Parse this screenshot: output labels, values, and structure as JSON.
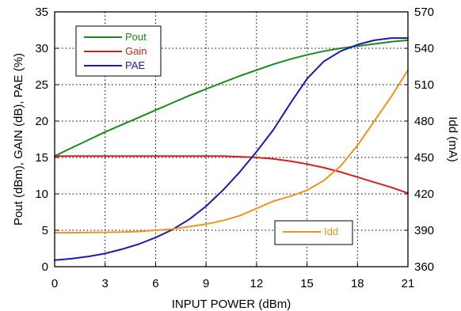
{
  "chart_data": {
    "type": "line",
    "xlabel": "INPUT POWER (dBm)",
    "ylabel_left": "Pout (dBm), GAIN (dB), PAE (%)",
    "ylabel_right": "Idd (mA)",
    "xlim": [
      0,
      21
    ],
    "ylim_left": [
      0,
      35
    ],
    "ylim_right": [
      360,
      570
    ],
    "x_ticks": [
      0,
      3,
      6,
      9,
      12,
      15,
      18,
      21
    ],
    "y_left_ticks": [
      0,
      5,
      10,
      15,
      20,
      25,
      30,
      35
    ],
    "y_right_ticks": [
      360,
      390,
      420,
      450,
      480,
      510,
      540,
      570
    ],
    "grid": "dotted",
    "x": [
      0,
      1,
      2,
      3,
      4,
      5,
      6,
      7,
      8,
      9,
      10,
      11,
      12,
      13,
      14,
      15,
      16,
      17,
      18,
      19,
      20,
      21
    ],
    "series": [
      {
        "name": "Pout",
        "axis": "left",
        "color": "#1a8a1a",
        "values": [
          15.2,
          16.3,
          17.4,
          18.5,
          19.5,
          20.5,
          21.5,
          22.5,
          23.5,
          24.4,
          25.3,
          26.2,
          27.0,
          27.8,
          28.5,
          29.1,
          29.6,
          30.0,
          30.3,
          30.6,
          30.9,
          31.1
        ]
      },
      {
        "name": "Gain",
        "axis": "left",
        "color": "#d42020",
        "values": [
          15.2,
          15.2,
          15.2,
          15.2,
          15.2,
          15.2,
          15.2,
          15.2,
          15.2,
          15.2,
          15.2,
          15.1,
          15.0,
          14.8,
          14.5,
          14.1,
          13.6,
          13.0,
          12.3,
          11.6,
          10.9,
          10.1
        ]
      },
      {
        "name": "PAE",
        "axis": "left",
        "color": "#1a1ab4",
        "values": [
          0.9,
          1.1,
          1.4,
          1.8,
          2.4,
          3.1,
          4.0,
          5.1,
          6.5,
          8.3,
          10.5,
          13.0,
          15.8,
          18.8,
          22.4,
          25.8,
          28.2,
          29.6,
          30.5,
          31.1,
          31.4,
          31.4
        ]
      },
      {
        "name": "Idd",
        "axis": "right",
        "color": "#f0941e",
        "values": [
          388,
          388,
          388.2,
          388.3,
          388.5,
          389,
          390,
          391,
          393,
          395,
          398,
          402,
          408,
          414,
          418,
          423,
          431,
          443,
          460,
          480,
          500,
          522
        ]
      }
    ],
    "legend": [
      {
        "position": "top-left",
        "entries": [
          "Pout",
          "Gain",
          "PAE"
        ]
      },
      {
        "position": "bottom-right",
        "entries": [
          "Idd"
        ]
      }
    ]
  }
}
